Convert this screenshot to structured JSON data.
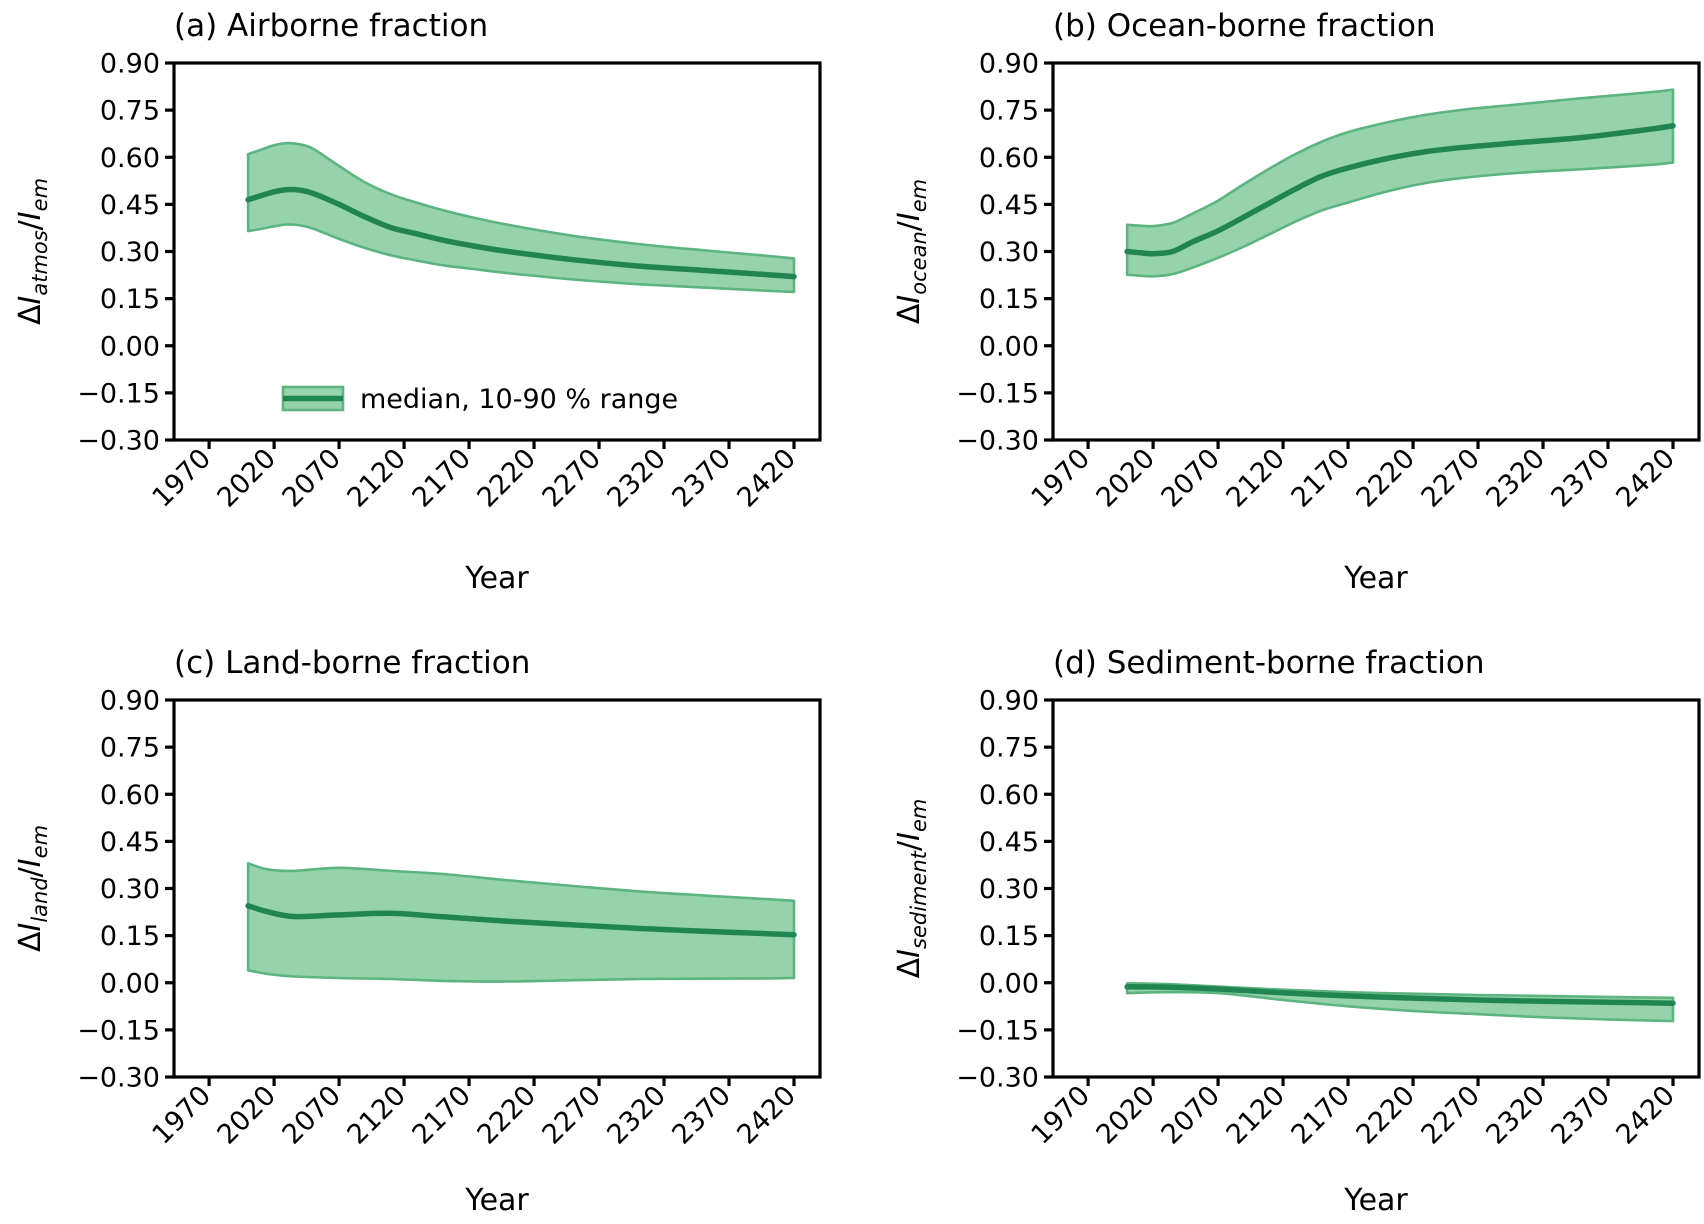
{
  "figure": {
    "background": "#ffffff",
    "panels_layout": "2x2 grid"
  },
  "legend": {
    "label": "median, 10-90 % range",
    "panel": "a",
    "location": "lower-center-of-panel-a",
    "frame": false
  },
  "axes": {
    "xlabel": "Year",
    "xlim": [
      1943,
      2440
    ],
    "ylim": [
      -0.3,
      0.9
    ],
    "xticks": [
      1970,
      2020,
      2070,
      2120,
      2170,
      2220,
      2270,
      2320,
      2370,
      2420
    ],
    "yticks": [
      0.9,
      0.75,
      0.6,
      0.45,
      0.3,
      0.15,
      0.0,
      -0.15,
      -0.3
    ],
    "xtick_rotation_deg": 45,
    "grid": false,
    "tick_direction": "out"
  },
  "style": {
    "band_fill": "#96d3aa",
    "band_edge": "#5cb580",
    "median_color": "#218553",
    "spine_color": "#000000",
    "text_color": "#000000"
  },
  "chart_data": [
    {
      "id": "a",
      "type": "area",
      "title": "(a) Airborne fraction",
      "ylabel": "ΔI_atmos/I_em",
      "ylabel_parts": {
        "prefix": "Δ",
        "num": "I",
        "num_sub": "atmos",
        "den": "I",
        "den_sub": "em"
      },
      "x": [
        2000,
        2010,
        2020,
        2030,
        2040,
        2050,
        2070,
        2090,
        2110,
        2130,
        2150,
        2170,
        2200,
        2250,
        2300,
        2350,
        2400,
        2420
      ],
      "median": [
        0.465,
        0.478,
        0.49,
        0.497,
        0.495,
        0.485,
        0.45,
        0.41,
        0.376,
        0.356,
        0.336,
        0.32,
        0.3,
        0.274,
        0.254,
        0.24,
        0.226,
        0.22
      ],
      "p90": [
        0.61,
        0.624,
        0.638,
        0.645,
        0.641,
        0.627,
        0.572,
        0.52,
        0.482,
        0.455,
        0.431,
        0.411,
        0.385,
        0.35,
        0.324,
        0.304,
        0.286,
        0.278
      ],
      "p10": [
        0.365,
        0.372,
        0.38,
        0.386,
        0.383,
        0.373,
        0.34,
        0.311,
        0.288,
        0.271,
        0.256,
        0.246,
        0.231,
        0.211,
        0.196,
        0.185,
        0.175,
        0.171
      ]
    },
    {
      "id": "b",
      "type": "area",
      "title": "(b) Ocean-borne fraction",
      "ylabel": "ΔI_ocean/I_em",
      "ylabel_parts": {
        "prefix": "Δ",
        "num": "I",
        "num_sub": "ocean",
        "den": "I",
        "den_sub": "em"
      },
      "x": [
        2000,
        2010,
        2020,
        2035,
        2050,
        2070,
        2090,
        2110,
        2130,
        2150,
        2170,
        2200,
        2230,
        2260,
        2300,
        2350,
        2400,
        2420
      ],
      "median": [
        0.3,
        0.296,
        0.293,
        0.3,
        0.33,
        0.366,
        0.41,
        0.455,
        0.5,
        0.54,
        0.566,
        0.596,
        0.618,
        0.632,
        0.646,
        0.663,
        0.688,
        0.7
      ],
      "p90": [
        0.385,
        0.382,
        0.381,
        0.391,
        0.42,
        0.462,
        0.515,
        0.565,
        0.611,
        0.65,
        0.68,
        0.711,
        0.735,
        0.752,
        0.768,
        0.788,
        0.806,
        0.815
      ],
      "p10": [
        0.226,
        0.223,
        0.221,
        0.228,
        0.248,
        0.28,
        0.316,
        0.356,
        0.396,
        0.431,
        0.456,
        0.491,
        0.518,
        0.535,
        0.55,
        0.562,
        0.575,
        0.583
      ]
    },
    {
      "id": "c",
      "type": "area",
      "title": "(c) Land-borne fraction",
      "ylabel": "ΔI_land/I_em",
      "ylabel_parts": {
        "prefix": "Δ",
        "num": "I",
        "num_sub": "land",
        "den": "I",
        "den_sub": "em"
      },
      "x": [
        2000,
        2015,
        2035,
        2070,
        2110,
        2150,
        2200,
        2250,
        2300,
        2350,
        2400,
        2420
      ],
      "median": [
        0.245,
        0.226,
        0.211,
        0.216,
        0.221,
        0.21,
        0.196,
        0.184,
        0.173,
        0.164,
        0.156,
        0.153
      ],
      "p90": [
        0.38,
        0.361,
        0.356,
        0.366,
        0.356,
        0.346,
        0.326,
        0.308,
        0.291,
        0.278,
        0.266,
        0.261
      ],
      "p10": [
        0.04,
        0.028,
        0.02,
        0.015,
        0.012,
        0.006,
        0.004,
        0.008,
        0.012,
        0.013,
        0.014,
        0.015
      ]
    },
    {
      "id": "d",
      "type": "area",
      "title": "(d) Sediment-borne fraction",
      "ylabel": "ΔI_sediment/I_em",
      "ylabel_parts": {
        "prefix": "Δ",
        "num": "I",
        "num_sub": "sediment",
        "den": "I",
        "den_sub": "em"
      },
      "x": [
        2000,
        2030,
        2070,
        2120,
        2170,
        2220,
        2270,
        2320,
        2370,
        2420
      ],
      "median": [
        -0.013,
        -0.014,
        -0.02,
        -0.032,
        -0.042,
        -0.049,
        -0.055,
        -0.059,
        -0.062,
        -0.065
      ],
      "p90": [
        -0.002,
        -0.004,
        -0.012,
        -0.022,
        -0.03,
        -0.035,
        -0.039,
        -0.042,
        -0.045,
        -0.048
      ],
      "p10": [
        -0.033,
        -0.03,
        -0.033,
        -0.055,
        -0.075,
        -0.09,
        -0.1,
        -0.11,
        -0.117,
        -0.122
      ]
    }
  ]
}
